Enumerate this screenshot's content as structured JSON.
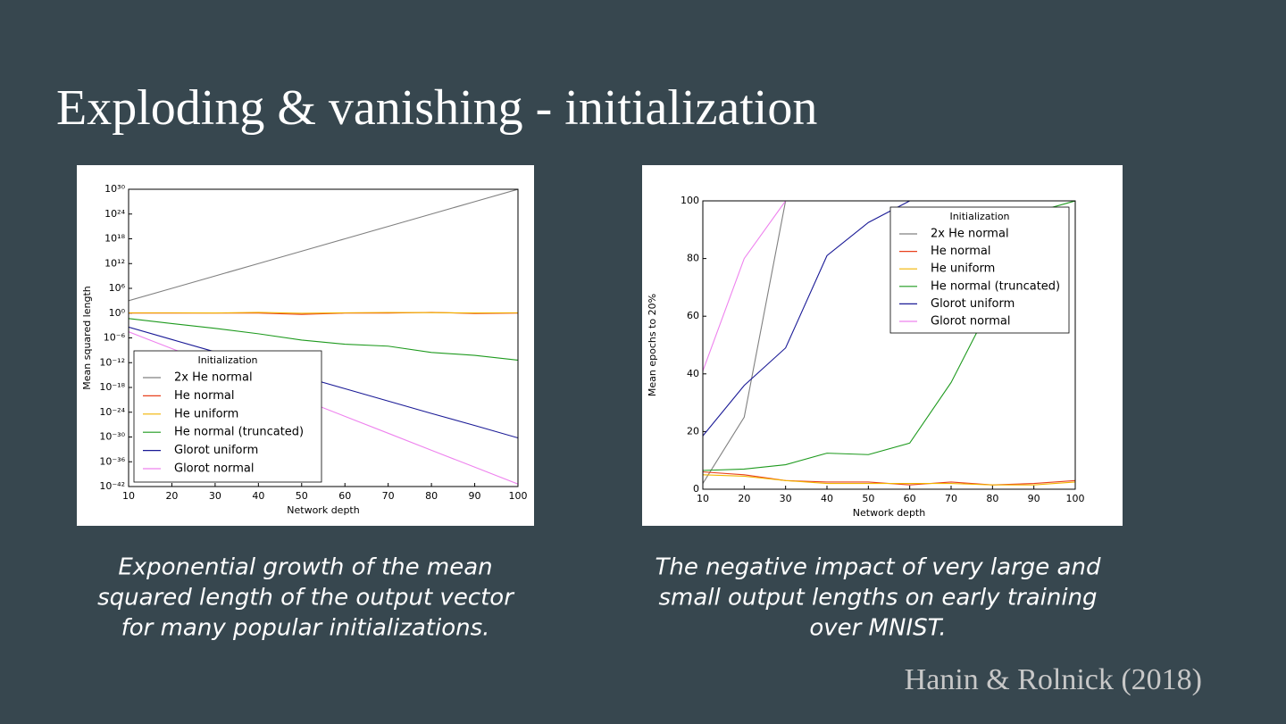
{
  "title": "Exploding & vanishing - initialization",
  "citation": "Hanin & Rolnick (2018)",
  "chart_data": [
    {
      "type": "line",
      "xlabel": "Network depth",
      "ylabel": "Mean squared length",
      "yscale": "log",
      "xlim": [
        10,
        100
      ],
      "xticks": [
        10,
        20,
        30,
        40,
        50,
        60,
        70,
        80,
        90,
        100
      ],
      "ylim": [
        1e-42,
        1e+30
      ],
      "yticks": [
        {
          "value": 1e-42,
          "label": "10⁻⁴²"
        },
        {
          "value": 1e-36,
          "label": "10⁻³⁶"
        },
        {
          "value": 1e-30,
          "label": "10⁻³⁰"
        },
        {
          "value": 1e-24,
          "label": "10⁻²⁴"
        },
        {
          "value": 1e-18,
          "label": "10⁻¹⁸"
        },
        {
          "value": 1e-12,
          "label": "10⁻¹²"
        },
        {
          "value": 1e-06,
          "label": "10⁻⁶"
        },
        {
          "value": 1,
          "label": "10⁰"
        },
        {
          "value": 1000000.0,
          "label": "10⁶"
        },
        {
          "value": 1000000000000.0,
          "label": "10¹²"
        },
        {
          "value": 1e+18,
          "label": "10¹⁸"
        },
        {
          "value": 1e+24,
          "label": "10²⁴"
        },
        {
          "value": 1e+30,
          "label": "10³⁰"
        }
      ],
      "grid": false,
      "legend_title": "Initialization",
      "legend": "lower left",
      "x": [
        10,
        20,
        30,
        40,
        50,
        60,
        70,
        80,
        90,
        100
      ],
      "series": [
        {
          "name": "2x He normal",
          "color": "#808080",
          "values": [
            1000.0,
            1000000.0,
            1000000000.0,
            1000000000000.0,
            1000000000000000.0,
            1e+18,
            1e+21,
            1e+24,
            1e+27,
            1e+30
          ]
        },
        {
          "name": "He normal",
          "color": "#e8401c",
          "values": [
            1,
            1,
            1,
            1,
            0.5,
            1,
            1,
            1.5,
            0.8,
            1
          ]
        },
        {
          "name": "He uniform",
          "color": "#f2b400",
          "values": [
            1.2,
            1.2,
            1.1,
            1.5,
            0.9,
            1.2,
            1.4,
            1.3,
            1.1,
            1.2
          ]
        },
        {
          "name": "He normal (truncated)",
          "color": "#1e9a1e",
          "values": [
            0.05,
            0.003,
            0.0002,
            1e-05,
            3e-07,
            3e-08,
            1e-08,
            3e-10,
            6e-11,
            4e-12
          ]
        },
        {
          "name": "Glorot uniform",
          "color": "#1a1a96",
          "values": [
            0.0004,
            4e-07,
            4e-10,
            5e-13,
            5e-16,
            5e-19,
            5e-22,
            5e-25,
            6e-28,
            6e-31
          ]
        },
        {
          "name": "Glorot normal",
          "color": "#ee82ee",
          "values": [
            3e-05,
            2.5e-09,
            2e-13,
            1.6e-17,
            1.3e-21,
            1e-25,
            8e-30,
            6e-34,
            5e-38,
            4e-42
          ]
        }
      ],
      "caption": [
        "Exponential growth of the mean",
        "squared length of the output vector",
        "for many popular initializations."
      ]
    },
    {
      "type": "line",
      "xlabel": "Network depth",
      "ylabel": "Mean epochs to 20%",
      "yscale": "linear",
      "xlim": [
        10,
        100
      ],
      "xticks": [
        10,
        20,
        30,
        40,
        50,
        60,
        70,
        80,
        90,
        100
      ],
      "ylim": [
        0,
        100
      ],
      "yticks": [
        0,
        20,
        40,
        60,
        80,
        100
      ],
      "grid": false,
      "legend_title": "Initialization",
      "legend": "upper right",
      "x": [
        10,
        20,
        30,
        40,
        50,
        60,
        70,
        80,
        90,
        100
      ],
      "series": [
        {
          "name": "2x He normal",
          "color": "#808080",
          "values": [
            2,
            25,
            100,
            null,
            null,
            null,
            null,
            null,
            null,
            null
          ]
        },
        {
          "name": "He normal",
          "color": "#e8401c",
          "values": [
            6,
            5,
            3,
            2.5,
            2.5,
            1.5,
            2.5,
            1.5,
            2,
            3
          ]
        },
        {
          "name": "He uniform",
          "color": "#f2b400",
          "values": [
            5,
            4.5,
            3,
            2,
            2,
            2,
            2,
            1.5,
            1.5,
            2.5
          ]
        },
        {
          "name": "He normal (truncated)",
          "color": "#1e9a1e",
          "values": [
            6.5,
            7,
            8.5,
            12.5,
            12,
            16,
            37,
            65,
            96,
            100
          ]
        },
        {
          "name": "Glorot uniform",
          "color": "#1a1a96",
          "values": [
            18.5,
            36,
            49,
            81,
            92.5,
            100,
            null,
            null,
            null,
            null
          ]
        },
        {
          "name": "Glorot normal",
          "color": "#ee82ee",
          "values": [
            41,
            80,
            100,
            null,
            null,
            null,
            null,
            null,
            null,
            null
          ]
        }
      ],
      "caption": [
        "The negative impact of very large and",
        "small output lengths on early training",
        "over MNIST."
      ]
    }
  ]
}
